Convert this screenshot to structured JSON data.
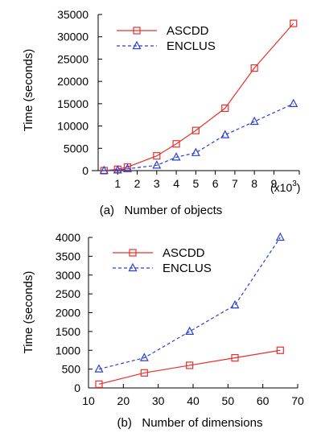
{
  "chart_data": [
    {
      "type": "line",
      "caption": "(a)   Number of objects",
      "ylabel": "Time (seconds)",
      "x_unit_label": "(x10",
      "x_unit_exp": "3",
      "x_unit_close": ")",
      "xlim": [
        0,
        10.3
      ],
      "ylim": [
        0,
        35000
      ],
      "xticks": [
        1,
        2,
        3,
        4,
        5,
        6,
        7,
        8,
        9
      ],
      "yticks": [
        0,
        5000,
        10000,
        15000,
        20000,
        25000,
        30000,
        35000
      ],
      "legend_position": "top-left",
      "series": [
        {
          "name": "ASCDD",
          "color": "#e8302a",
          "marker": "square",
          "dash": "solid",
          "x": [
            0.3,
            1.0,
            1.5,
            3.0,
            4.0,
            5.0,
            6.5,
            8.0,
            10.0
          ],
          "y": [
            0,
            300,
            800,
            3300,
            6000,
            9000,
            14000,
            23000,
            33000
          ]
        },
        {
          "name": "ENCLUS",
          "color": "#2a3fd6",
          "marker": "triangle",
          "dash": "dashed",
          "x": [
            0.3,
            1.0,
            1.5,
            3.0,
            4.0,
            5.0,
            6.5,
            8.0,
            10.0
          ],
          "y": [
            0,
            100,
            400,
            1200,
            3000,
            4000,
            8000,
            11000,
            15000
          ]
        }
      ]
    },
    {
      "type": "line",
      "caption": "(b)   Number of dimensions",
      "ylabel": "Time (seconds)",
      "xlim": [
        10,
        70
      ],
      "ylim": [
        0,
        4000
      ],
      "xticks": [
        10,
        20,
        30,
        40,
        50,
        60,
        70
      ],
      "yticks": [
        0,
        500,
        1000,
        1500,
        2000,
        2500,
        3000,
        3500,
        4000
      ],
      "legend_position": "top-left",
      "series": [
        {
          "name": "ASCDD",
          "color": "#e8302a",
          "marker": "square",
          "dash": "solid",
          "x": [
            13,
            26,
            39,
            52,
            65
          ],
          "y": [
            100,
            400,
            600,
            800,
            1000
          ]
        },
        {
          "name": "ENCLUS",
          "color": "#2a3fd6",
          "marker": "triangle",
          "dash": "dashed",
          "x": [
            13,
            26,
            39,
            52,
            65
          ],
          "y": [
            500,
            800,
            1500,
            2200,
            4000
          ]
        }
      ]
    }
  ]
}
